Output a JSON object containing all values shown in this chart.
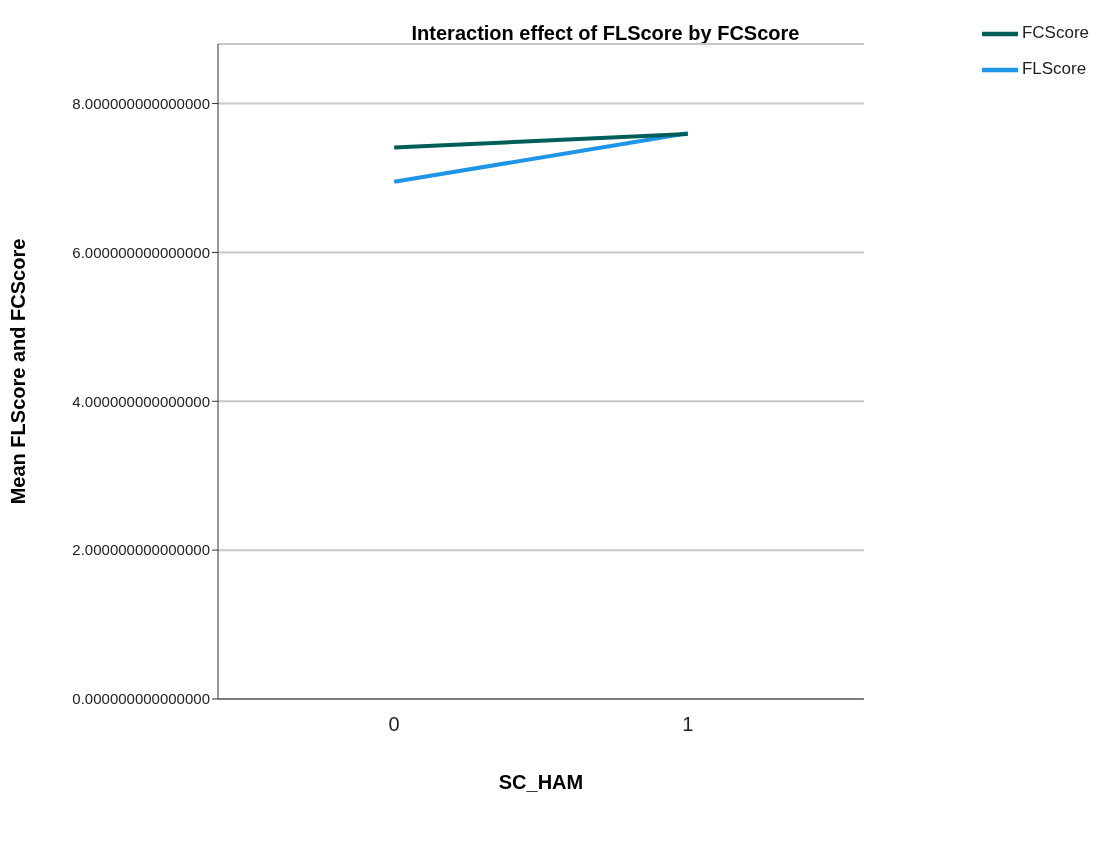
{
  "chart_data": {
    "type": "line",
    "title": "Interaction effect of FLScore by FCScore",
    "xlabel": "SC_HAM",
    "ylabel": "Mean FLScore  and FCScore",
    "categories": [
      "0",
      "1"
    ],
    "series": [
      {
        "name": "FLScore",
        "color": "#1f95e6",
        "values": [
          6.95,
          7.6
        ]
      },
      {
        "name": "FCScore",
        "color": "#005e5a",
        "values": [
          7.41,
          7.59
        ]
      }
    ],
    "ylim": [
      0,
      8.8
    ],
    "yticks": [
      {
        "value": 0,
        "label": "0.000000000000000"
      },
      {
        "value": 2,
        "label": "2.000000000000000"
      },
      {
        "value": 4,
        "label": "4.000000000000000"
      },
      {
        "value": 6,
        "label": "6.000000000000000"
      },
      {
        "value": 8,
        "label": "8.000000000000000"
      }
    ],
    "grid": "y",
    "legend": "top right",
    "marker": "none",
    "line_style": "solid"
  }
}
